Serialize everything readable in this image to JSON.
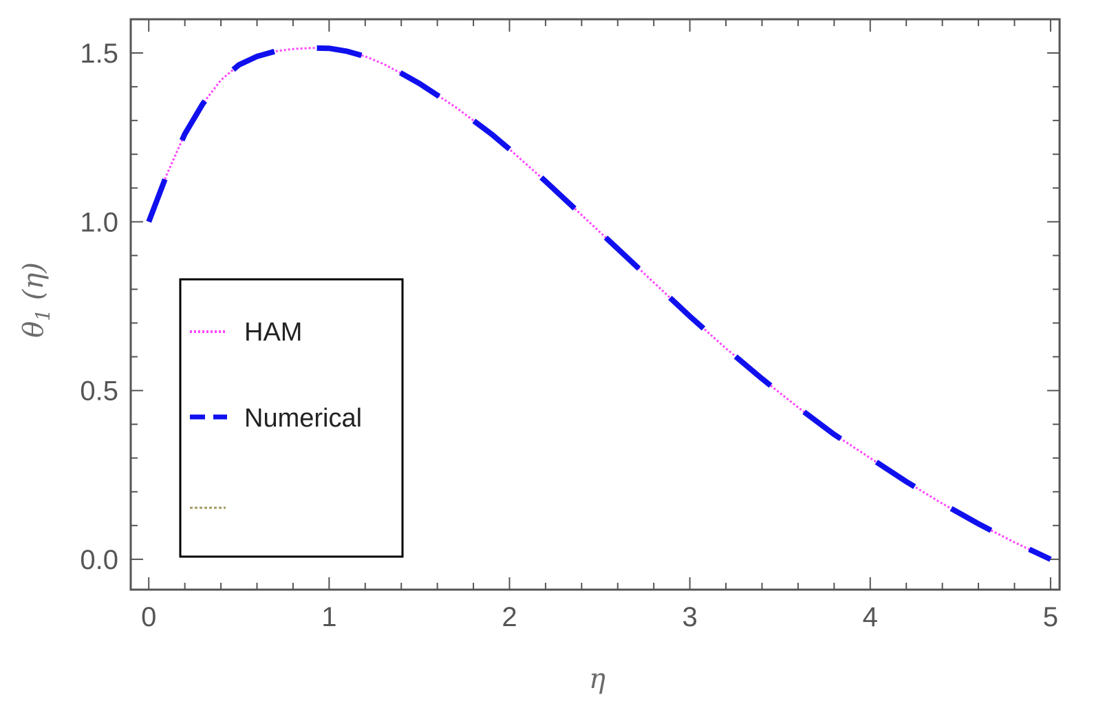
{
  "chart_data": {
    "type": "line",
    "xlabel": "η",
    "ylabel": {
      "base": "θ",
      "sub": "1",
      "arg": " (η)"
    },
    "xlim": [
      -0.1,
      5.05
    ],
    "ylim": [
      -0.09,
      1.6
    ],
    "x_ticks": [
      0,
      1,
      2,
      3,
      4,
      5
    ],
    "x_tick_labels": [
      "0",
      "1",
      "2",
      "3",
      "4",
      "5"
    ],
    "y_ticks": [
      0.0,
      0.5,
      1.0,
      1.5
    ],
    "y_tick_labels": [
      "0.0",
      "0.5",
      "1.0",
      "1.5"
    ],
    "grid": false,
    "legend": {
      "placement": "middle-left",
      "entries": [
        "HAM",
        "Numerical",
        ""
      ]
    },
    "series": [
      {
        "name": "HAM",
        "color": "#ff44ff",
        "style": "dotted",
        "x": [
          0,
          0.1,
          0.2,
          0.3,
          0.4,
          0.5,
          0.6,
          0.7,
          0.8,
          0.9,
          1.0,
          1.1,
          1.2,
          1.3,
          1.4,
          1.5,
          1.6,
          1.7,
          1.8,
          1.9,
          2.0,
          2.2,
          2.4,
          2.6,
          2.8,
          3.0,
          3.2,
          3.4,
          3.6,
          3.8,
          4.0,
          4.2,
          4.4,
          4.6,
          4.8,
          5.0
        ],
        "y": [
          1.0,
          1.14,
          1.26,
          1.35,
          1.42,
          1.465,
          1.49,
          1.505,
          1.512,
          1.515,
          1.514,
          1.505,
          1.49,
          1.468,
          1.44,
          1.41,
          1.375,
          1.34,
          1.3,
          1.26,
          1.215,
          1.12,
          1.02,
          0.92,
          0.82,
          0.72,
          0.625,
          0.535,
          0.45,
          0.37,
          0.3,
          0.23,
          0.165,
          0.105,
          0.05,
          0.0
        ]
      },
      {
        "name": "Numerical",
        "color": "#1010ee",
        "style": "dashed",
        "x": [
          0,
          0.1,
          0.2,
          0.3,
          0.4,
          0.5,
          0.6,
          0.7,
          0.8,
          0.9,
          1.0,
          1.1,
          1.2,
          1.3,
          1.4,
          1.5,
          1.6,
          1.7,
          1.8,
          1.9,
          2.0,
          2.2,
          2.4,
          2.6,
          2.8,
          3.0,
          3.2,
          3.4,
          3.6,
          3.8,
          4.0,
          4.2,
          4.4,
          4.6,
          4.8,
          5.0
        ],
        "y": [
          1.0,
          1.14,
          1.26,
          1.35,
          1.42,
          1.465,
          1.49,
          1.505,
          1.512,
          1.515,
          1.514,
          1.505,
          1.49,
          1.468,
          1.44,
          1.41,
          1.375,
          1.34,
          1.3,
          1.26,
          1.215,
          1.12,
          1.02,
          0.92,
          0.82,
          0.72,
          0.625,
          0.535,
          0.45,
          0.37,
          0.3,
          0.23,
          0.165,
          0.105,
          0.05,
          0.0
        ]
      }
    ],
    "colors": {
      "frame": "#555555",
      "legend_third": "#a09a60"
    }
  }
}
